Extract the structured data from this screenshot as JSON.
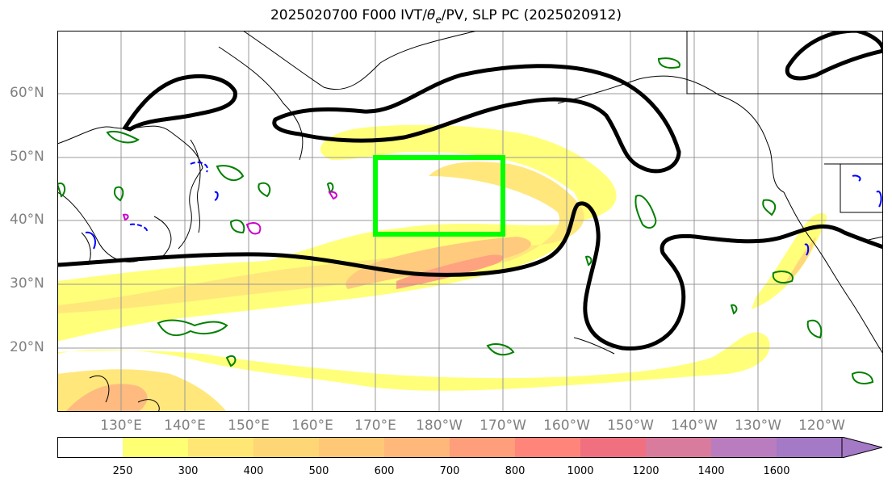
{
  "title": "2025020700 F000 IVT/θe/PV, SLP PC (2025020912)",
  "title_parts": {
    "pre": "2025020700 F000 IVT/",
    "theta": "θ",
    "sub": "e",
    "post": "/PV, SLP PC (2025020912)"
  },
  "lat_labels": [
    "60°N",
    "50°N",
    "40°N",
    "30°N",
    "20°N"
  ],
  "lon_labels": [
    "130°E",
    "140°E",
    "150°E",
    "160°E",
    "170°E",
    "180°W",
    "170°W",
    "160°W",
    "150°W",
    "140°W",
    "130°W",
    "120°W"
  ],
  "colorbar": {
    "ticks": [
      "250",
      "300",
      "400",
      "500",
      "600",
      "700",
      "800",
      "1000",
      "1200",
      "1400",
      "1600"
    ],
    "colors": [
      "#ffffff",
      "#ffff73",
      "#ffe675",
      "#ffd675",
      "#ffc877",
      "#ffb77a",
      "#ff9e7a",
      "#ff857a",
      "#f07080",
      "#d97b9c",
      "#b97dbf",
      "#a479c6",
      "#a479c6"
    ]
  },
  "colors": {
    "slp_contour": "#000000",
    "pv_contour": "#008000",
    "theta_e_neg": "#0000ff",
    "theta_e_pos": "#cc00cc",
    "box": "#00ff00",
    "coast": "#000000"
  },
  "target_box": {
    "lon_range": [
      "170°E",
      "170°W"
    ],
    "lat_range": [
      "38°N",
      "50°N"
    ]
  }
}
